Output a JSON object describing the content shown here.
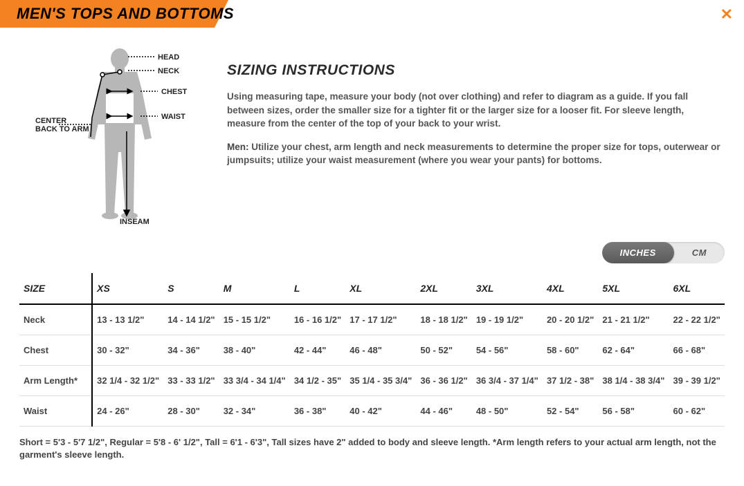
{
  "header": {
    "title": "MEN'S TOPS AND BOTTOMS"
  },
  "close": "✕",
  "diagram_labels": {
    "head": "HEAD",
    "neck": "NECK",
    "chest": "CHEST",
    "waist": "WAIST",
    "center_back_to_arm": "CENTER\nBACK TO ARM",
    "inseam": "INSEAM"
  },
  "instructions": {
    "title": "SIZING INSTRUCTIONS",
    "p1": "Using measuring tape, measure your body (not over clothing) and refer to diagram as a guide. If you fall between sizes, order the smaller size for a tighter fit or the larger size for a looser fit. For sleeve length, measure from the center of the top of your back to your wrist.",
    "p2_bold": "Men:",
    "p2": " Utilize your chest, arm length and neck measurements to determine the proper size for tops, outerwear or jumpsuits; utilize your waist measurement (where you wear your pants) for bottoms."
  },
  "toggle": {
    "inches": "INCHES",
    "cm": "CM",
    "active": "inches"
  },
  "table": {
    "header_col": "SIZE",
    "sizes": [
      "XS",
      "S",
      "M",
      "L",
      "XL",
      "2XL",
      "3XL",
      "4XL",
      "5XL",
      "6XL"
    ],
    "rows": [
      {
        "label": "Neck",
        "cells": [
          "13 - 13 1/2\"",
          "14 - 14 1/2\"",
          "15 - 15 1/2\"",
          "16 - 16 1/2\"",
          "17 - 17 1/2\"",
          "18 - 18 1/2\"",
          "19 - 19 1/2\"",
          "20 - 20 1/2\"",
          "21 - 21 1/2\"",
          "22 - 22 1/2\""
        ]
      },
      {
        "label": "Chest",
        "cells": [
          "30 - 32\"",
          "34 - 36\"",
          "38 - 40\"",
          "42 - 44\"",
          "46 - 48\"",
          "50 - 52\"",
          "54 - 56\"",
          "58 - 60\"",
          "62 - 64\"",
          "66 - 68\""
        ]
      },
      {
        "label": "Arm Length*",
        "cells": [
          "32 1/4 - 32 1/2\"",
          "33 - 33 1/2\"",
          "33 3/4 - 34 1/4\"",
          "34 1/2 - 35\"",
          "35 1/4 - 35 3/4\"",
          "36 - 36 1/2\"",
          "36 3/4 - 37 1/4\"",
          "37 1/2 - 38\"",
          "38 1/4 - 38 3/4\"",
          "39 - 39 1/2\""
        ]
      },
      {
        "label": "Waist",
        "cells": [
          "24 - 26\"",
          "28 - 30\"",
          "32 - 34\"",
          "36 - 38\"",
          "40 - 42\"",
          "44 - 46\"",
          "48 - 50\"",
          "52 - 54\"",
          "56 - 58\"",
          "60 - 62\""
        ]
      }
    ]
  },
  "footnote": "Short = 5'3 - 5'7 1/2\", Regular = 5'8 - 6' 1/2\", Tall = 6'1 - 6'3\", Tall sizes have 2\" added to body and sleeve length. *Arm length refers to your actual arm length, not the garment's sleeve length.",
  "colors": {
    "accent": "#f58220",
    "text": "#444",
    "grid": "#ddd",
    "header_divider": "#000"
  }
}
